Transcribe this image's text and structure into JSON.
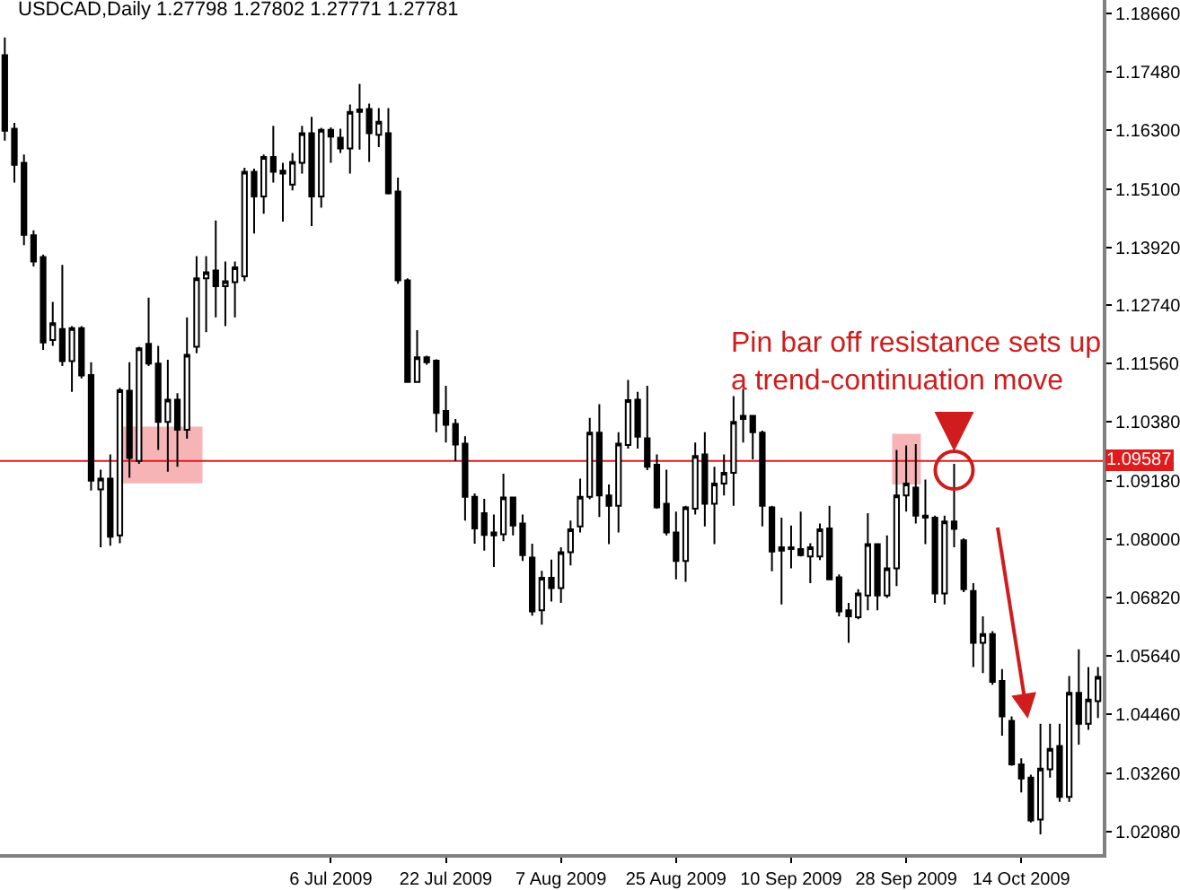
{
  "chart_data": {
    "type": "candlestick",
    "title": "USDCAD,Daily 1.27798 1.27802 1.27771 1.27781",
    "color": "#000000",
    "categories": [
      null,
      null,
      null,
      null,
      null,
      null,
      null,
      null,
      null,
      null,
      null,
      null,
      null,
      null,
      null,
      null,
      null,
      null,
      null,
      null,
      null,
      null,
      null,
      null,
      null,
      null,
      null,
      null,
      null,
      null,
      null,
      null,
      null,
      null,
      "6 Jul 2009",
      null,
      null,
      null,
      null,
      null,
      null,
      null,
      null,
      null,
      null,
      null,
      "22 Jul 2009",
      null,
      null,
      null,
      null,
      null,
      null,
      null,
      null,
      null,
      null,
      null,
      "7 Aug 2009",
      null,
      null,
      null,
      null,
      null,
      null,
      null,
      null,
      null,
      null,
      null,
      "25 Aug 2009",
      null,
      null,
      null,
      null,
      null,
      null,
      null,
      null,
      null,
      null,
      null,
      "10 Sep 2009",
      null,
      null,
      null,
      null,
      null,
      null,
      null,
      null,
      null,
      null,
      null,
      "28 Sep 2009",
      null,
      null,
      null,
      null,
      null,
      null,
      null,
      null,
      null,
      null,
      null,
      "14 Oct 2009",
      null,
      null,
      null,
      null,
      null,
      null,
      null,
      null
    ],
    "ohlc": [
      [
        1.1781,
        1.1817,
        1.1608,
        1.1628
      ],
      [
        1.1632,
        1.1644,
        1.1523,
        1.1559
      ],
      [
        1.1563,
        1.158,
        1.1396,
        1.1417
      ],
      [
        1.1416,
        1.1426,
        1.1353,
        1.1363
      ],
      [
        1.1372,
        1.1377,
        1.1184,
        1.1199
      ],
      [
        1.1204,
        1.1281,
        1.1192,
        1.1238
      ],
      [
        1.1226,
        1.1356,
        1.1151,
        1.1161
      ],
      [
        1.1161,
        1.1232,
        1.1099,
        1.1228
      ],
      [
        1.1228,
        1.1232,
        1.1126,
        1.1132
      ],
      [
        1.1133,
        1.1159,
        1.0899,
        1.0919
      ],
      [
        1.0901,
        1.0941,
        1.0784,
        1.0923
      ],
      [
        1.0923,
        1.0972,
        1.0787,
        1.0805
      ],
      [
        1.0808,
        1.1107,
        1.0792,
        1.1102
      ],
      [
        1.1101,
        1.1159,
        1.0925,
        1.0965
      ],
      [
        1.0959,
        1.119,
        1.0953,
        1.1187
      ],
      [
        1.1196,
        1.129,
        1.1151,
        1.1156
      ],
      [
        1.1156,
        1.1192,
        1.0981,
        1.1038
      ],
      [
        1.1038,
        1.1164,
        1.0937,
        1.1083
      ],
      [
        1.1083,
        1.1096,
        1.0947,
        1.1022
      ],
      [
        1.1022,
        1.125,
        1.1004,
        1.1174
      ],
      [
        1.119,
        1.1374,
        1.1177,
        1.1329
      ],
      [
        1.1329,
        1.1374,
        1.122,
        1.1341
      ],
      [
        1.1345,
        1.1446,
        1.125,
        1.1313
      ],
      [
        1.1313,
        1.1363,
        1.1232,
        1.1323
      ],
      [
        1.1321,
        1.1363,
        1.125,
        1.1351
      ],
      [
        1.1333,
        1.1553,
        1.1323,
        1.1545
      ],
      [
        1.1545,
        1.1551,
        1.142,
        1.1495
      ],
      [
        1.1495,
        1.158,
        1.146,
        1.1575
      ],
      [
        1.1575,
        1.1638,
        1.1523,
        1.1545
      ],
      [
        1.1547,
        1.1563,
        1.1444,
        1.1541
      ],
      [
        1.1519,
        1.1583,
        1.1507,
        1.1565
      ],
      [
        1.1563,
        1.1638,
        1.1541,
        1.1623
      ],
      [
        1.1623,
        1.1656,
        1.1435,
        1.1495
      ],
      [
        1.1495,
        1.1634,
        1.1472,
        1.163
      ],
      [
        1.163,
        1.1635,
        1.1563,
        1.1616
      ],
      [
        1.1614,
        1.1632,
        1.1583,
        1.1592
      ],
      [
        1.1592,
        1.1681,
        1.1541,
        1.1666
      ],
      [
        1.1671,
        1.1723,
        1.159,
        1.1666
      ],
      [
        1.1672,
        1.1683,
        1.1565,
        1.1623
      ],
      [
        1.162,
        1.1674,
        1.1595,
        1.1646
      ],
      [
        1.1623,
        1.1674,
        1.1499,
        1.1501
      ],
      [
        1.1505,
        1.1533,
        1.1318,
        1.1325
      ],
      [
        1.1325,
        1.1329,
        1.1117,
        1.1119
      ],
      [
        1.1119,
        1.1224,
        1.1117,
        1.1169
      ],
      [
        1.1169,
        1.1172,
        1.1154,
        1.1159
      ],
      [
        1.1162,
        1.1165,
        1.1017,
        1.1056
      ],
      [
        1.106,
        1.1111,
        1.0996,
        1.1032
      ],
      [
        1.1034,
        1.1044,
        1.0959,
        1.0992
      ],
      [
        1.0994,
        1.1009,
        1.0838,
        1.0886
      ],
      [
        1.0886,
        1.0893,
        1.0791,
        1.0822
      ],
      [
        1.0853,
        1.0882,
        1.0777,
        1.0809
      ],
      [
        1.0808,
        1.085,
        1.0744,
        1.0814
      ],
      [
        1.081,
        1.0933,
        1.0796,
        1.0885
      ],
      [
        1.0885,
        1.0886,
        1.0808,
        1.0828
      ],
      [
        1.0832,
        1.085,
        1.0756,
        1.0768
      ],
      [
        1.0763,
        1.0791,
        1.0645,
        1.0654
      ],
      [
        1.0656,
        1.0736,
        1.0627,
        1.0722
      ],
      [
        1.0722,
        1.0759,
        1.0674,
        1.0701
      ],
      [
        1.0701,
        1.0784,
        1.0671,
        1.0774
      ],
      [
        1.0774,
        1.0838,
        1.0747,
        1.082
      ],
      [
        1.0826,
        1.0923,
        1.0814,
        1.0886
      ],
      [
        1.0886,
        1.1046,
        1.0881,
        1.1016
      ],
      [
        1.1016,
        1.1074,
        1.0845,
        1.0889
      ],
      [
        1.0889,
        1.0911,
        1.079,
        1.0868
      ],
      [
        1.0868,
        1.1017,
        1.0814,
        1.0994
      ],
      [
        1.0991,
        1.1123,
        1.0984,
        1.1082
      ],
      [
        1.1083,
        1.1099,
        1.0984,
        1.1008
      ],
      [
        1.1005,
        1.1111,
        1.094,
        1.0947
      ],
      [
        1.0951,
        1.0972,
        1.0862,
        1.0865
      ],
      [
        1.0872,
        1.0941,
        1.0808,
        1.0814
      ],
      [
        1.0814,
        1.0856,
        1.0719,
        1.0756
      ],
      [
        1.0756,
        1.0868,
        1.0714,
        1.0865
      ],
      [
        1.0862,
        1.0996,
        1.085,
        1.0969
      ],
      [
        1.0972,
        1.1017,
        1.0826,
        1.0872
      ],
      [
        1.0872,
        1.0947,
        1.079,
        1.0913
      ],
      [
        1.0913,
        1.0972,
        1.0889,
        1.0935
      ],
      [
        1.0935,
        1.109,
        1.0868,
        1.1038
      ],
      [
        1.1044,
        1.1105,
        1.0996,
        1.105
      ],
      [
        1.105,
        1.105,
        1.0962,
        1.1017
      ],
      [
        1.1016,
        1.102,
        1.0826,
        1.0868
      ],
      [
        1.0865,
        1.0868,
        1.0735,
        1.0775
      ],
      [
        1.0777,
        1.0844,
        1.0668,
        1.0784
      ],
      [
        1.078,
        1.0828,
        1.0741,
        1.0784
      ],
      [
        1.078,
        1.0856,
        1.0765,
        1.0768
      ],
      [
        1.0765,
        1.0792,
        1.0711,
        1.0784
      ],
      [
        1.0765,
        1.0832,
        1.0758,
        1.082
      ],
      [
        1.0822,
        1.0868,
        1.0717,
        1.0719
      ],
      [
        1.0723,
        1.0729,
        1.0644,
        1.0654
      ],
      [
        1.0656,
        1.0671,
        1.059,
        1.0644
      ],
      [
        1.0642,
        1.0699,
        1.0638,
        1.069
      ],
      [
        1.0686,
        1.0853,
        1.0656,
        1.079
      ],
      [
        1.079,
        1.0792,
        1.0656,
        1.0686
      ],
      [
        1.0686,
        1.0808,
        1.0681,
        1.0741
      ],
      [
        1.0741,
        1.0981,
        1.0705,
        1.0889
      ],
      [
        1.0889,
        1.099,
        1.0856,
        1.0913
      ],
      [
        1.0905,
        1.0993,
        1.0832,
        1.0848
      ],
      [
        1.0848,
        1.0921,
        1.079,
        1.0844
      ],
      [
        1.0844,
        1.0848,
        1.0671,
        1.069
      ],
      [
        1.069,
        1.0848,
        1.0668,
        1.0836
      ],
      [
        1.0836,
        1.0953,
        1.0784,
        1.0821
      ],
      [
        1.0798,
        1.0802,
        1.0693,
        1.0699
      ],
      [
        1.0695,
        1.0711,
        1.0541,
        1.059
      ],
      [
        1.059,
        1.0644,
        1.0529,
        1.0608
      ],
      [
        1.0608,
        1.0614,
        1.0505,
        1.0511
      ],
      [
        1.0513,
        1.0537,
        1.0402,
        1.0441
      ],
      [
        1.0432,
        1.0441,
        1.0341,
        1.0344
      ],
      [
        1.0344,
        1.0356,
        1.0287,
        1.0315
      ],
      [
        1.0317,
        1.0323,
        1.0226,
        1.023
      ],
      [
        1.0232,
        1.0426,
        1.0202,
        1.0335
      ],
      [
        1.0334,
        1.0426,
        1.0317,
        1.0375
      ],
      [
        1.0381,
        1.0426,
        1.0268,
        1.0278
      ],
      [
        1.0278,
        1.0523,
        1.0268,
        1.0489
      ],
      [
        1.0489,
        1.0577,
        1.0384,
        1.0426
      ],
      [
        1.0426,
        1.0541,
        1.0414,
        1.0475
      ],
      [
        1.0472,
        1.0541,
        1.0438,
        1.0521
      ]
    ],
    "ylim": [
      1.0162,
      1.1893
    ],
    "yticks": [
      {
        "value": 1.1866,
        "label": "1.18660"
      },
      {
        "value": 1.1748,
        "label": "1.17480"
      },
      {
        "value": 1.163,
        "label": "1.16300"
      },
      {
        "value": 1.151,
        "label": "1.15100"
      },
      {
        "value": 1.1392,
        "label": "1.13920"
      },
      {
        "value": 1.1274,
        "label": "1.12740"
      },
      {
        "value": 1.1156,
        "label": "1.11560"
      },
      {
        "value": 1.1038,
        "label": "1.10380"
      },
      {
        "value": 1.0918,
        "label": "1.09180"
      },
      {
        "value": 1.08,
        "label": "1.08000"
      },
      {
        "value": 1.0682,
        "label": "1.06820"
      },
      {
        "value": 1.0564,
        "label": "1.05640"
      },
      {
        "value": 1.0446,
        "label": "1.04460"
      },
      {
        "value": 1.0326,
        "label": "1.03260"
      },
      {
        "value": 1.0208,
        "label": "1.02080"
      }
    ],
    "ref_lines": [
      {
        "axis": "y",
        "value": 1.09587,
        "label": "1.09587",
        "color": "#e01b1b"
      }
    ],
    "annotations": [
      {
        "text": "Pin bar off resistance sets up\na trend-continuation move",
        "y": 1.0953
      }
    ]
  }
}
